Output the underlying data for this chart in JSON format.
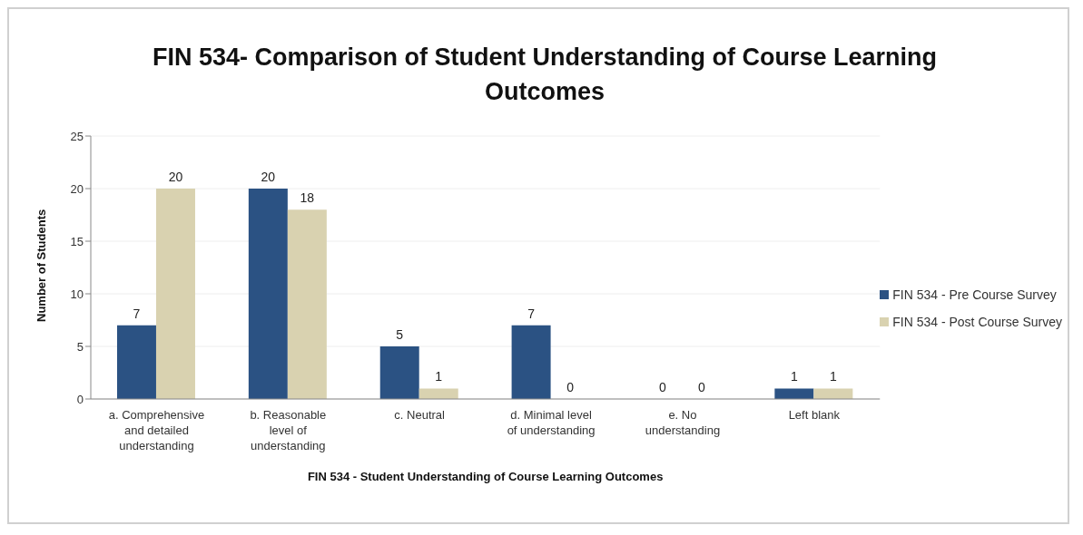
{
  "chart_data": {
    "type": "bar",
    "title": "FIN 534- Comparison of Student Understanding of Course Learning Outcomes",
    "xlabel": "FIN 534 - Student Understanding of Course Learning Outcomes",
    "ylabel": "Number of Students",
    "categories": [
      "a. Comprehensive and detailed understanding",
      "b. Reasonable level of understanding",
      "c. Neutral",
      "d. Minimal level of understanding",
      "e. No understanding",
      "Left blank"
    ],
    "series": [
      {
        "name": "FIN 534 - Pre Course Survey",
        "color": "#2b5283",
        "values": [
          7,
          20,
          5,
          7,
          0,
          1
        ]
      },
      {
        "name": "FIN 534 - Post Course Survey",
        "color": "#d9d2b0",
        "values": [
          20,
          18,
          1,
          0,
          0,
          1
        ]
      }
    ],
    "ylim": [
      0,
      25
    ],
    "yticks": [
      0,
      5,
      10,
      15,
      20,
      25
    ],
    "grid": "y",
    "legend": "right",
    "data_labels": true
  }
}
